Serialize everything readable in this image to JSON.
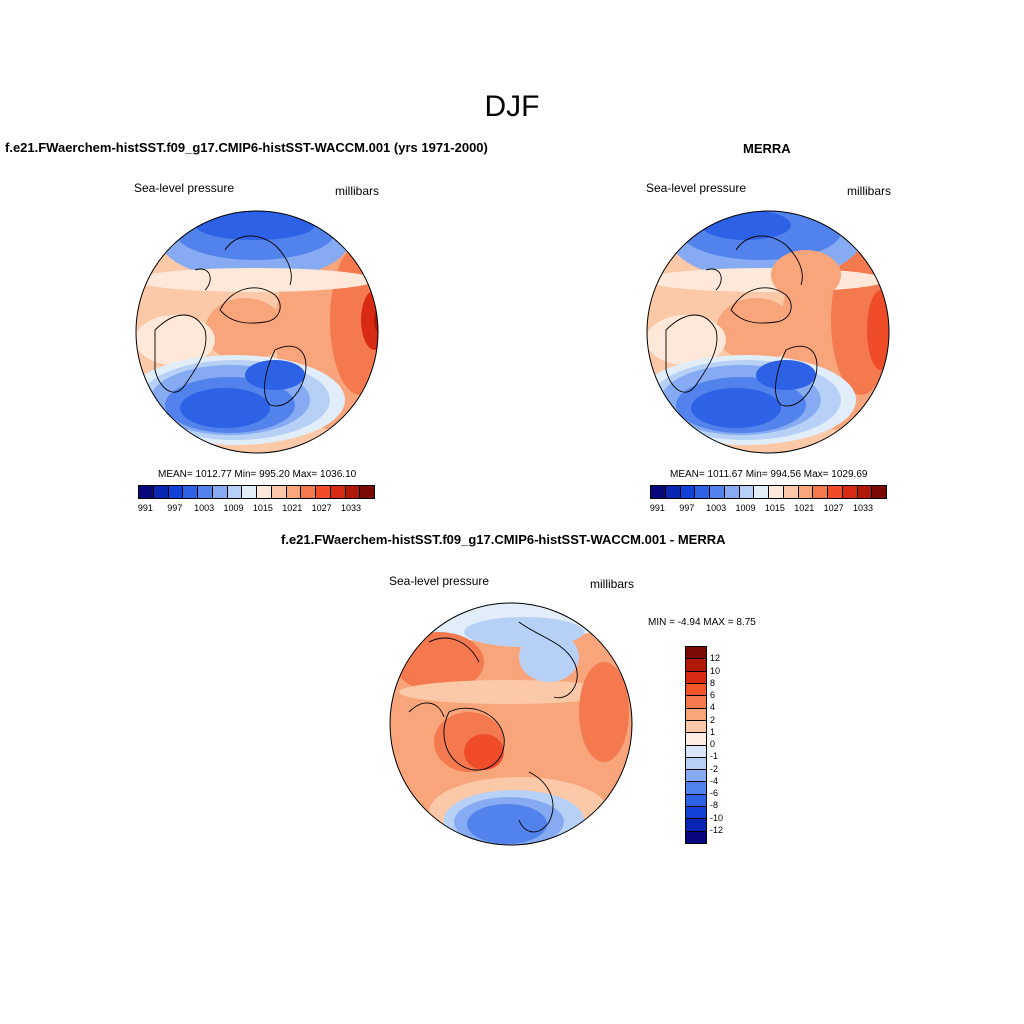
{
  "figure": {
    "title": "DJF"
  },
  "panel_model": {
    "title": "f.e21.FWaerchem-histSST.f09_g17.CMIP6-histSST-WACCM.001 (yrs 1971-2000)",
    "variable": "Sea-level pressure",
    "units": "millibars",
    "stats": "MEAN= 1012.77  Min= 995.20  Max= 1036.10"
  },
  "panel_obs": {
    "title": "MERRA",
    "variable": "Sea-level pressure",
    "units": "millibars",
    "stats": "MEAN= 1011.67  Min= 994.56  Max= 1029.69"
  },
  "panel_diff": {
    "title": "f.e21.FWaerchem-histSST.f09_g17.CMIP6-histSST-WACCM.001 - MERRA",
    "variable": "Sea-level pressure",
    "units": "millibars",
    "minmax": "MIN =  -4.94 MAX =   8.75"
  },
  "colorbar_abs": {
    "colors": [
      "#08077e",
      "#0a24b4",
      "#1141d9",
      "#2e62e6",
      "#5283ec",
      "#86abf2",
      "#b7d1f6",
      "#e2edfa",
      "#fde8d9",
      "#fbc9a8",
      "#f8a57c",
      "#f4794f",
      "#ef4d2a",
      "#d92b13",
      "#b0180a",
      "#7c0a04"
    ],
    "tick_labels": [
      "991",
      "997",
      "1003",
      "1009",
      "1015",
      "1021",
      "1027",
      "1033"
    ]
  },
  "colorbar_diff": {
    "colors": [
      "#7c0a04",
      "#b0180a",
      "#d92b13",
      "#f4542a",
      "#f4794f",
      "#f8a57c",
      "#fbc9a8",
      "#fdeee3",
      "#dbe7f9",
      "#b7d1f6",
      "#86abf2",
      "#5283ec",
      "#2e62e6",
      "#1141d9",
      "#0a24b4",
      "#08077e"
    ],
    "tick_labels": [
      "12",
      "10",
      "8",
      "6",
      "4",
      "2",
      "1",
      "0",
      "-1",
      "-2",
      "-4",
      "-6",
      "-8",
      "-10",
      "-12"
    ]
  }
}
